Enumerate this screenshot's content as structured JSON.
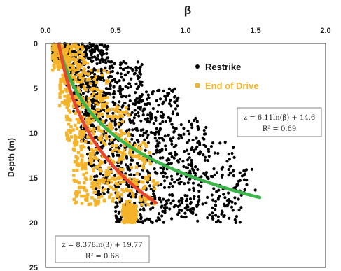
{
  "chart_data": {
    "type": "scatter",
    "title": "",
    "xlabel": "β",
    "ylabel": "Depth (m)",
    "xlim": [
      0.0,
      2.0
    ],
    "ylim": [
      0,
      25
    ],
    "y_inverted": true,
    "x_axis_position": "top",
    "x_ticks": [
      "0.0",
      "0.5",
      "1.0",
      "1.5",
      "2.0"
    ],
    "y_ticks": [
      "0",
      "5",
      "10",
      "15",
      "20",
      "25"
    ],
    "grid": false,
    "legend_position": "top-right",
    "series": [
      {
        "name": "Restrike",
        "color": "#000000",
        "marker": "circle",
        "point_count_approx": 1500,
        "density_bands": [
          {
            "depth": [
              0,
              2
            ],
            "beta": [
              0.05,
              0.45
            ]
          },
          {
            "depth": [
              2,
              5
            ],
            "beta": [
              0.15,
              0.7
            ]
          },
          {
            "depth": [
              5,
              8
            ],
            "beta": [
              0.2,
              0.95
            ]
          },
          {
            "depth": [
              8,
              11
            ],
            "beta": [
              0.25,
              1.15
            ]
          },
          {
            "depth": [
              11,
              14
            ],
            "beta": [
              0.3,
              1.35
            ]
          },
          {
            "depth": [
              14,
              17
            ],
            "beta": [
              0.35,
              1.5
            ]
          },
          {
            "depth": [
              17,
              20
            ],
            "beta": [
              0.5,
              1.4
            ]
          }
        ]
      },
      {
        "name": "End of Drive",
        "color": "#f5b32a",
        "marker": "square",
        "point_count_approx": 900,
        "density_bands": [
          {
            "depth": [
              0,
              3
            ],
            "beta": [
              0.05,
              0.3
            ]
          },
          {
            "depth": [
              3,
              7
            ],
            "beta": [
              0.1,
              0.45
            ]
          },
          {
            "depth": [
              7,
              11
            ],
            "beta": [
              0.15,
              0.6
            ]
          },
          {
            "depth": [
              11,
              15
            ],
            "beta": [
              0.2,
              0.75
            ]
          },
          {
            "depth": [
              15,
              18
            ],
            "beta": [
              0.2,
              0.8
            ]
          },
          {
            "depth": [
              18,
              20
            ],
            "beta": [
              0.55,
              0.65
            ]
          }
        ]
      }
    ],
    "fits": [
      {
        "color": "#3cb54a",
        "a": 6.11,
        "b": 14.6,
        "beta_range": [
          0.095,
          1.53
        ],
        "equation": "z = 6.11ln(β) + 14.6",
        "r2": "R² = 0.69"
      },
      {
        "color": "#e8452c",
        "a": 8.378,
        "b": 19.77,
        "beta_range": [
          0.095,
          0.79
        ],
        "equation": "z = 8.378ln(β) + 19.77",
        "r2": "R² = 0.68"
      }
    ]
  }
}
